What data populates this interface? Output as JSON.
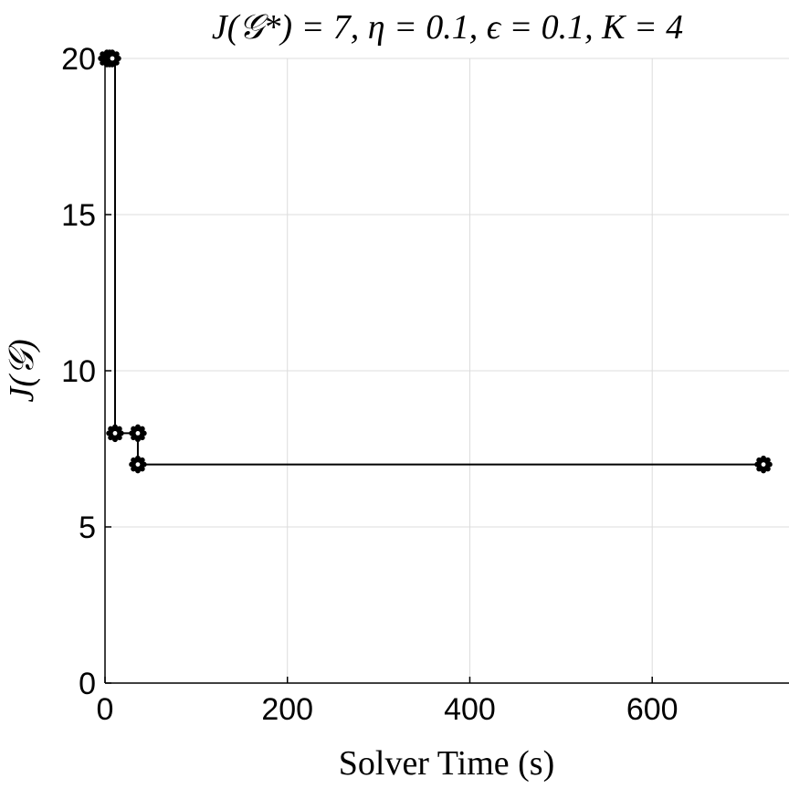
{
  "chart_data": {
    "type": "line",
    "title": "J(𝒢*) = 7, η = 0.1, ϵ = 0.1, K = 4",
    "xlabel": "Solver Time (s)",
    "ylabel": "J(𝒢)",
    "xlim": [
      0,
      750
    ],
    "ylim": [
      0,
      20
    ],
    "xticks": [
      0,
      200,
      400,
      600
    ],
    "yticks": [
      0,
      5,
      10,
      15,
      20
    ],
    "grid": true,
    "legend": "none",
    "step": "post",
    "series": [
      {
        "color": "#000000",
        "x": [
          2,
          5,
          8,
          11,
          36,
          36,
          722
        ],
        "y": [
          20,
          20,
          20,
          8,
          8,
          7,
          7
        ]
      }
    ]
  }
}
